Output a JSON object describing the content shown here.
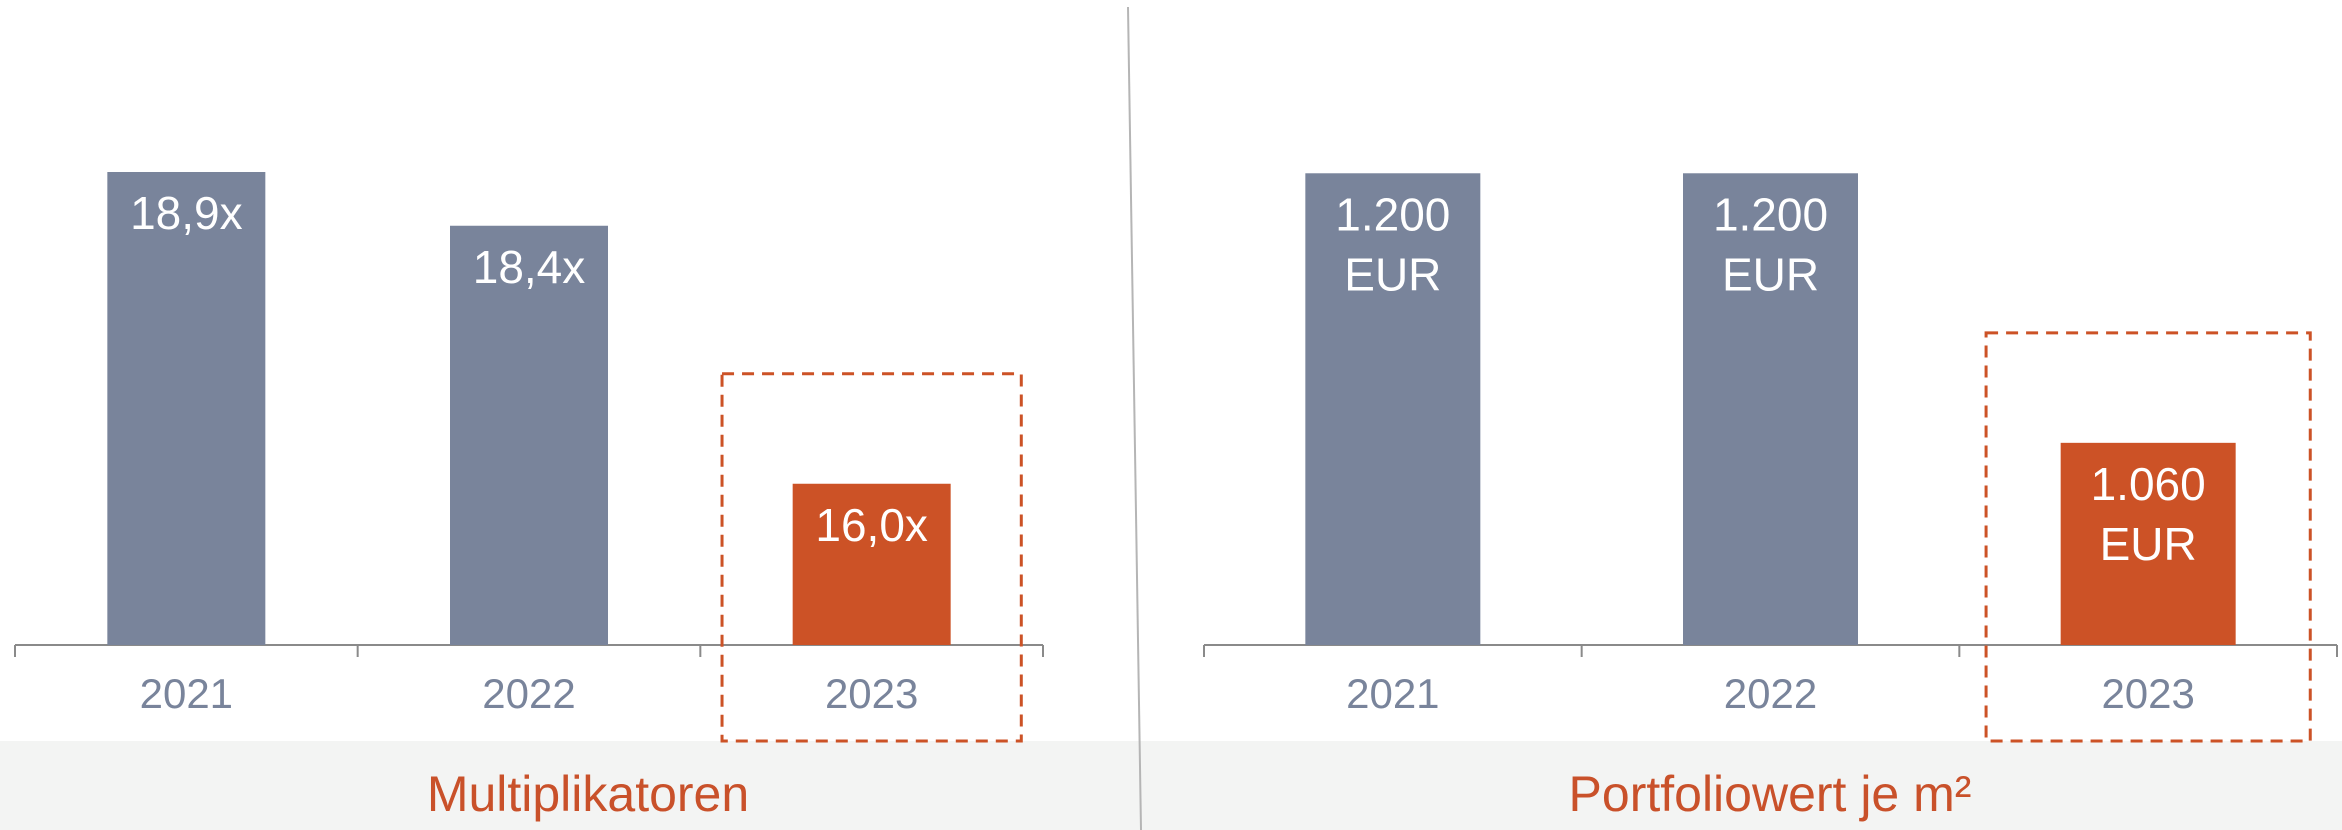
{
  "chart_data": [
    {
      "type": "bar",
      "subtitle": "Multiplikatoren",
      "categories": [
        "2021",
        "2022",
        "2023"
      ],
      "values": [
        18.9,
        18.4,
        16.0
      ],
      "value_labels": [
        "18,9x",
        "18,4x",
        "16,0x"
      ],
      "colors": [
        "#79849b",
        "#79849b",
        "#cc5226"
      ],
      "ylim": [
        14.5,
        20.5
      ]
    },
    {
      "type": "bar",
      "subtitle": "Portfoliowert je m²",
      "categories": [
        "2021",
        "2022",
        "2023"
      ],
      "values": [
        1200,
        1200,
        1060
      ],
      "value_labels": [
        "1.200 EUR",
        "1.200 EUR",
        "1.060 EUR"
      ],
      "colors": [
        "#79849b",
        "#79849b",
        "#cc5226"
      ],
      "ylim": [
        955,
        1290
      ]
    }
  ]
}
